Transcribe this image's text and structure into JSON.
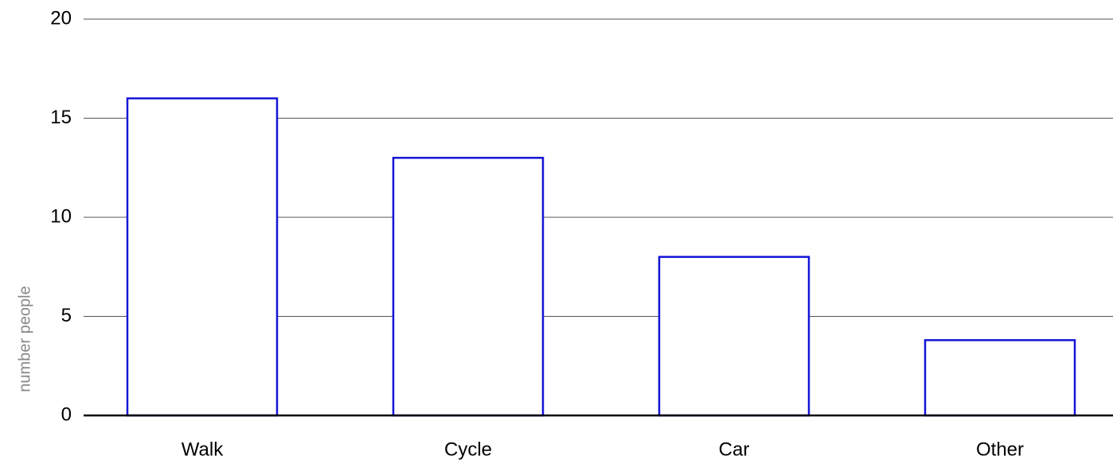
{
  "chart_data": {
    "type": "bar",
    "y_label": "number people",
    "categories": [
      "Walk",
      "Cycle",
      "Car",
      "Other"
    ],
    "values": [
      16,
      13,
      8,
      3.8
    ],
    "color": "#1414d8",
    "ylim": [
      0,
      20
    ],
    "yticks": [
      0,
      5,
      10,
      15,
      20
    ],
    "grid": true
  }
}
